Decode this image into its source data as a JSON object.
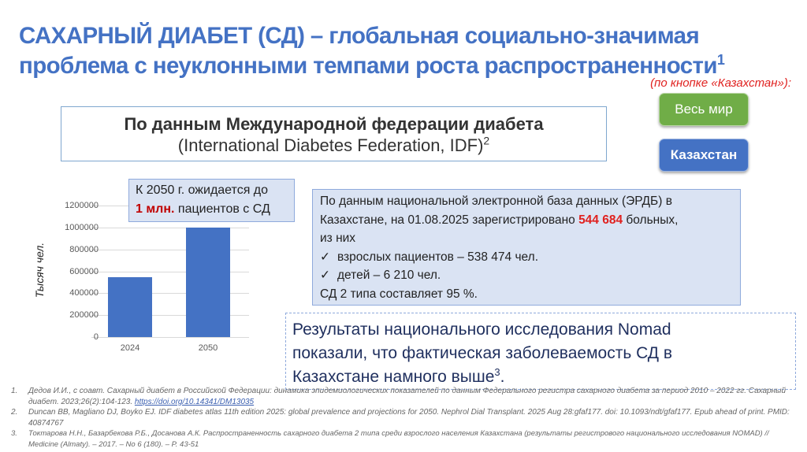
{
  "title": {
    "line1": "САХАРНЫЙ ДИАБЕТ (СД) – глобальная социально-значимая",
    "line2": "проблема с неуклонными темпами роста распространенности",
    "footnote_ref": "1"
  },
  "note": "(по кнопке «Казахстан»):",
  "buttons": {
    "world": "Весь мир",
    "kazakhstan": "Казахстан"
  },
  "idf_box": {
    "line1": "По данным Международной федерации диабета",
    "line2": "(International Diabetes Federation, IDF)",
    "footnote_ref": "2"
  },
  "callout": {
    "text1": "К 2050 г. ожидается до",
    "highlight": "1 млн.",
    "text2": " пациентов с СД"
  },
  "chart_data": {
    "type": "bar",
    "title": "",
    "xlabel": "",
    "ylabel": "Тысяч чел.",
    "categories": [
      "2024",
      "2050"
    ],
    "values": [
      544684,
      1000000
    ],
    "yticks": [
      "0",
      "200000",
      "400000",
      "600000",
      "800000",
      "1000000",
      "1200000"
    ],
    "ylim": [
      0,
      1200000
    ],
    "grid": true,
    "color": "#4472C4"
  },
  "erdb": {
    "line1": "По данным национальной электронной база данных (ЭРДБ) в",
    "line2_pre": "Казахстане, на 01.08.2025 зарегистрировано ",
    "line2_highlight": "544 684",
    "line2_post": " больных,",
    "line3": "из них",
    "bullets": [
      "взрослых пациентов – 538 474 чел.",
      "детей – 6 210 чел."
    ],
    "check_glyph": "✓",
    "last": "СД 2 типа составляет 95 %."
  },
  "nomad": {
    "line1": "Результаты национального исследования Nomad",
    "line2": "показали, что фактическая заболеваемость СД в",
    "line3": "Казахстане намного выше",
    "footnote_ref": "3",
    "end": "."
  },
  "references": [
    {
      "num": "1.",
      "text": "Дедов И.И., с соавт. Сахарный диабет в Российской Федерации: динамика эпидемиологических показателей по данным Федерального регистра сахарного диабета за период 2010 – 2022 гг. Сахарный диабет. 2023;26(2):104-123. ",
      "link": "https://doi.org/10.14341/DM13035"
    },
    {
      "num": "2.",
      "text": "Duncan BB, Magliano DJ, Boyko EJ. IDF diabetes atlas 11th edition 2025: global prevalence and projections for 2050. Nephrol Dial Transplant. 2025 Aug 28:gfaf177. doi: 10.1093/ndt/gfaf177. Epub ahead of print. PMID: 40874767"
    },
    {
      "num": "3.",
      "text": "Токтарова Н.Н., Базарбекова Р.Б., Досанова А.К. Распространенность сахарного диабета 2 типа среди взрослого населения Казахстана (результаты регистрового национального исследования NOMAD) // Medicine (Almaty). – 2017. – No 6 (180). – P. 43-51"
    }
  ],
  "colors": {
    "title": "#4472C4",
    "note": "#e0211f",
    "button_world": "#70AD47",
    "button_kazakhstan": "#4472C4",
    "highlight_red": "#e0211f",
    "box_fill": "#dae3f3",
    "bar": "#4472C4"
  }
}
